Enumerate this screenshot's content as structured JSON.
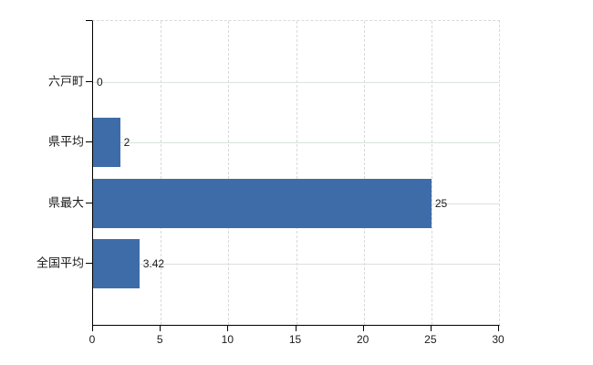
{
  "chart_data": {
    "type": "bar",
    "orientation": "horizontal",
    "title": "",
    "xlabel": "",
    "ylabel": "",
    "categories": [
      "六戸町",
      "県平均",
      "県最大",
      "全国平均"
    ],
    "values": [
      0,
      2,
      25,
      3.42
    ],
    "value_labels": [
      "0",
      "2",
      "25",
      "3.42"
    ],
    "xlim": [
      0,
      30
    ],
    "x_ticks": [
      0,
      5,
      10,
      15,
      20,
      25,
      30
    ],
    "x_tick_labels": [
      "0",
      "5",
      "10",
      "15",
      "20",
      "25",
      "30"
    ],
    "grid": true,
    "legend_position": "none"
  },
  "colors": {
    "bar": "#3e6ca8",
    "axis": "#000000",
    "grid_vertical": "#d9d9d9",
    "grid_horizontal": "#dbe2db",
    "text": "#1a1a1a",
    "background": "#ffffff"
  }
}
